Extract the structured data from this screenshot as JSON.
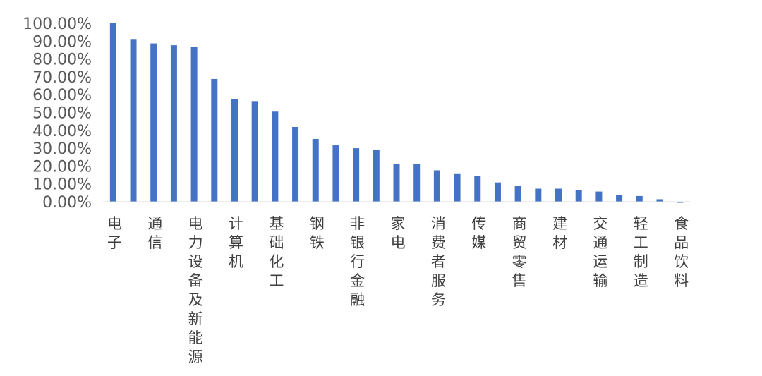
{
  "chart_data": {
    "type": "bar",
    "title": "",
    "xlabel": "",
    "ylabel": "",
    "ylim": [
      0,
      100
    ],
    "ytick_step": 10,
    "ytick_format": "percent_2dp",
    "grid": false,
    "bar_color": "#4472C4",
    "categories": [
      "电子",
      "",
      "通信",
      "",
      "电力设备及新能源",
      "",
      "计算机",
      "",
      "基础化工",
      "",
      "钢铁",
      "",
      "非银行金融",
      "",
      "家电",
      "",
      "消费者服务",
      "",
      "传媒",
      "",
      "商贸零售",
      "",
      "建材",
      "",
      "交通运输",
      "",
      "轻工制造",
      "",
      "食品饮料"
    ],
    "values": [
      100.0,
      91.2,
      88.7,
      87.7,
      86.9,
      68.8,
      57.4,
      56.4,
      50.5,
      41.9,
      35.2,
      31.6,
      30.0,
      29.2,
      21.1,
      21.1,
      17.6,
      15.9,
      14.4,
      10.8,
      9.1,
      7.3,
      7.3,
      6.6,
      5.7,
      3.9,
      3.2,
      1.4,
      -0.6
    ],
    "tick_labels": [
      "0.00%",
      "10.00%",
      "20.00%",
      "30.00%",
      "40.00%",
      "50.00%",
      "60.00%",
      "70.00%",
      "80.00%",
      "90.00%",
      "100.00%"
    ]
  }
}
